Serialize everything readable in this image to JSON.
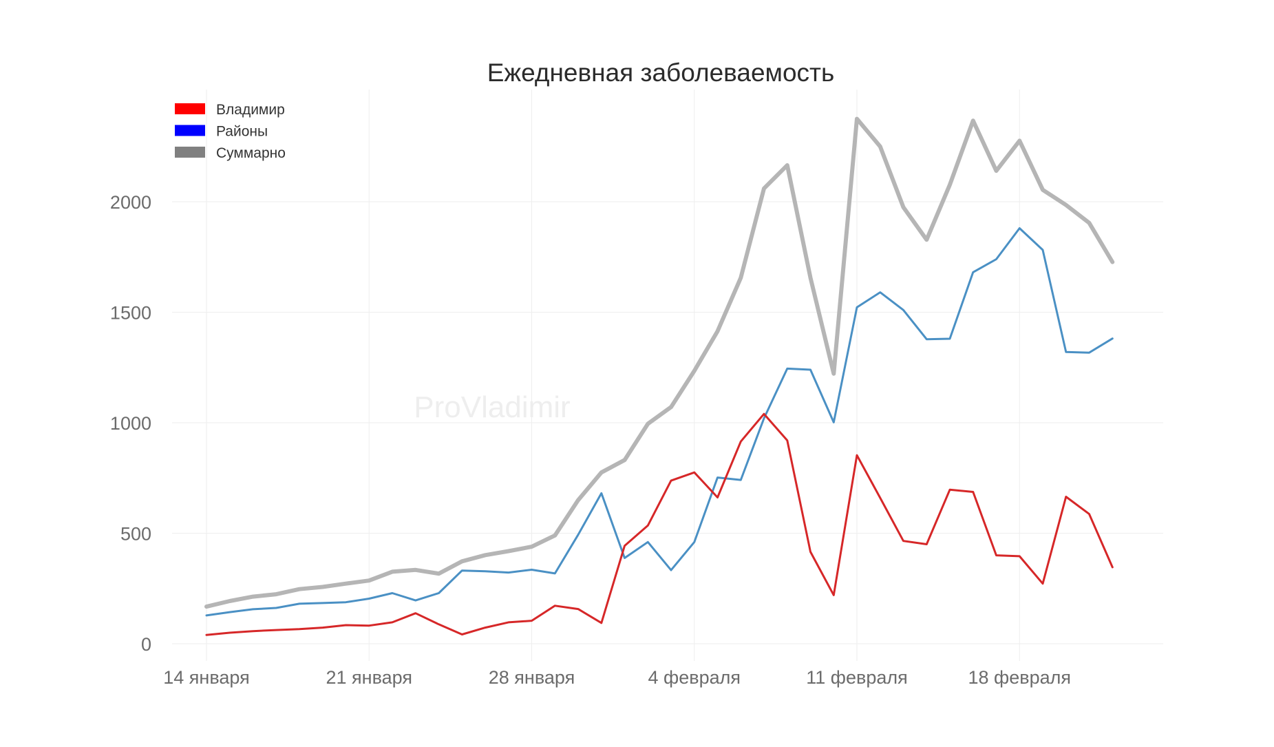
{
  "chart_data": {
    "type": "line",
    "title": "Ежедневная заболеваемость",
    "watermark": "ProVladimir",
    "x": [
      "01-14",
      "01-15",
      "01-16",
      "01-17",
      "01-18",
      "01-19",
      "01-20",
      "01-21",
      "01-22",
      "01-23",
      "01-24",
      "01-25",
      "01-26",
      "01-27",
      "01-28",
      "01-29",
      "01-30",
      "01-31",
      "02-01",
      "02-02",
      "02-03",
      "02-04",
      "02-05",
      "02-06",
      "02-07",
      "02-08",
      "02-09",
      "02-10",
      "02-11",
      "02-12",
      "02-13",
      "02-14",
      "02-15",
      "02-16",
      "02-17",
      "02-18",
      "02-19",
      "02-20",
      "02-21",
      "02-22"
    ],
    "x_ticks": [
      {
        "date": "01-14",
        "label": "14 января"
      },
      {
        "date": "01-21",
        "label": "21 января"
      },
      {
        "date": "01-28",
        "label": "28 января"
      },
      {
        "date": "02-04",
        "label": "4 февраля"
      },
      {
        "date": "02-11",
        "label": "11 февраля"
      },
      {
        "date": "02-18",
        "label": "18 февраля"
      }
    ],
    "y_ticks": [
      0,
      500,
      1000,
      1500,
      2000
    ],
    "ylim": [
      -50,
      2500
    ],
    "grid": true,
    "legend_position": "top-left",
    "series": [
      {
        "name": "Владимир",
        "color": "#d62728",
        "legend_color": "#ff0000",
        "values": [
          40,
          50,
          57,
          62,
          66,
          73,
          84,
          82,
          97,
          138,
          88,
          42,
          73,
          97,
          104,
          172,
          157,
          94,
          443,
          535,
          738,
          775,
          662,
          915,
          1040,
          920,
          416,
          220,
          853,
          660,
          465,
          450,
          697,
          687,
          400,
          396,
          272,
          665,
          587,
          346
        ]
      },
      {
        "name": "Районы",
        "color": "#4a90c4",
        "legend_color": "#0000ff",
        "values": [
          128,
          143,
          156,
          162,
          181,
          184,
          188,
          204,
          229,
          196,
          229,
          331,
          328,
          322,
          335,
          318,
          493,
          681,
          388,
          460,
          333,
          460,
          752,
          741,
          1020,
          1245,
          1240,
          1002,
          1522,
          1590,
          1510,
          1378,
          1380,
          1681,
          1740,
          1880,
          1782,
          1320,
          1317,
          1381
        ]
      },
      {
        "name": "Суммарно",
        "color": "#b5b5b5",
        "legend_color": "#808080",
        "values": [
          168,
          193,
          213,
          224,
          247,
          257,
          272,
          286,
          326,
          334,
          317,
          373,
          401,
          419,
          439,
          490,
          650,
          775,
          831,
          995,
          1071,
          1235,
          1414,
          1656,
          2060,
          2165,
          1656,
          1222,
          2375,
          2250,
          1975,
          1828,
          2077,
          2367,
          2140,
          2276,
          2054,
          1985,
          1904,
          1727
        ]
      }
    ]
  }
}
